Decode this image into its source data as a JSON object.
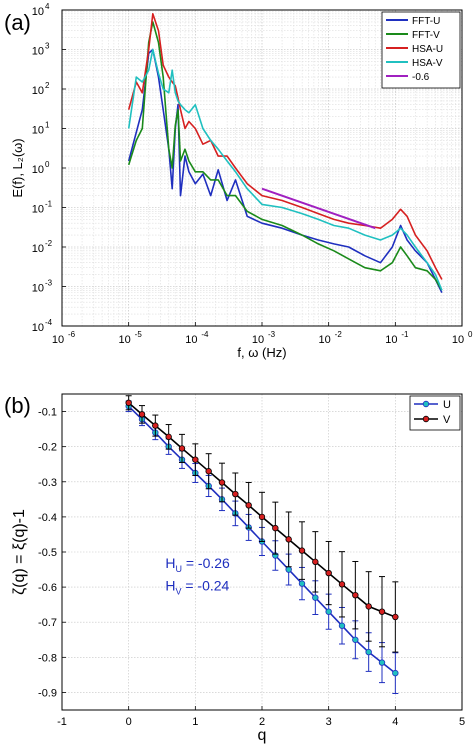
{
  "chart_data": [
    {
      "panel_label": "(a)",
      "type": "line",
      "title": "",
      "xlabel": "f, ω (Hz)",
      "ylabel": "E(f), L₂(ω)",
      "xscale": "log",
      "yscale": "log",
      "xlim": [
        1e-06,
        1
      ],
      "ylim": [
        0.0001,
        10000.0
      ],
      "x_ticks": [
        {
          "base": "10",
          "exp": "-6"
        },
        {
          "base": "10",
          "exp": "-5"
        },
        {
          "base": "10",
          "exp": "-4"
        },
        {
          "base": "10",
          "exp": "-3"
        },
        {
          "base": "10",
          "exp": "-2"
        },
        {
          "base": "10",
          "exp": "-1"
        },
        {
          "base": "10",
          "exp": "0"
        }
      ],
      "y_ticks": [
        {
          "base": "10",
          "exp": "-4"
        },
        {
          "base": "10",
          "exp": "-3"
        },
        {
          "base": "10",
          "exp": "-2"
        },
        {
          "base": "10",
          "exp": "-1"
        },
        {
          "base": "10",
          "exp": "0"
        },
        {
          "base": "10",
          "exp": "1"
        },
        {
          "base": "10",
          "exp": "2"
        },
        {
          "base": "10",
          "exp": "3"
        },
        {
          "base": "10",
          "exp": "4"
        }
      ],
      "grid": true,
      "legend_position": "top-right",
      "series": [
        {
          "name": "FFT-U",
          "color": "#1f2fbf",
          "x": [
            1e-05,
            1.3e-05,
            1.6e-05,
            2e-05,
            2.3e-05,
            2.8e-05,
            3.3e-05,
            4e-05,
            4.5e-05,
            5e-05,
            5.5e-05,
            6e-05,
            7e-05,
            8e-05,
            0.0001,
            0.00013,
            0.00017,
            0.00022,
            0.0003,
            0.0004,
            0.0006,
            0.001,
            0.002,
            0.004,
            0.007,
            0.012,
            0.02,
            0.035,
            0.06,
            0.09,
            0.12,
            0.15,
            0.2,
            0.3,
            0.4,
            0.5
          ],
          "y": [
            1.5,
            8,
            30,
            800,
            1000,
            200,
            30,
            3,
            0.3,
            10,
            40,
            0.2,
            2,
            0.8,
            0.4,
            0.7,
            0.2,
            0.9,
            0.15,
            0.5,
            0.06,
            0.04,
            0.03,
            0.02,
            0.015,
            0.012,
            0.01,
            0.006,
            0.004,
            0.01,
            0.035,
            0.015,
            0.008,
            0.004,
            0.0015,
            0.0007
          ]
        },
        {
          "name": "FFT-V",
          "color": "#1a8a1a",
          "x": [
            1e-05,
            1.3e-05,
            1.6e-05,
            2e-05,
            2.3e-05,
            2.8e-05,
            3.3e-05,
            4e-05,
            4.5e-05,
            5e-05,
            5.5e-05,
            6e-05,
            7e-05,
            8e-05,
            0.0001,
            0.00013,
            0.00017,
            0.00022,
            0.0003,
            0.0004,
            0.0006,
            0.001,
            0.002,
            0.004,
            0.007,
            0.012,
            0.02,
            0.035,
            0.06,
            0.09,
            0.12,
            0.15,
            0.2,
            0.3,
            0.4,
            0.5
          ],
          "y": [
            1.2,
            5,
            10,
            1500,
            5000,
            1500,
            200,
            3,
            1,
            12,
            30,
            1.5,
            3,
            1.5,
            0.8,
            0.8,
            0.5,
            0.5,
            0.2,
            0.2,
            0.08,
            0.05,
            0.035,
            0.02,
            0.012,
            0.008,
            0.005,
            0.003,
            0.0025,
            0.004,
            0.01,
            0.006,
            0.003,
            0.0025,
            0.0015,
            0.0008
          ]
        },
        {
          "name": "HSA-U",
          "color": "#d62020",
          "x": [
            1e-05,
            1.3e-05,
            1.6e-05,
            2e-05,
            2.3e-05,
            2.8e-05,
            3.3e-05,
            4e-05,
            4.5e-05,
            5e-05,
            5.5e-05,
            6e-05,
            7e-05,
            8e-05,
            0.0001,
            0.00013,
            0.00017,
            0.00022,
            0.0003,
            0.0004,
            0.0006,
            0.001,
            0.002,
            0.004,
            0.007,
            0.012,
            0.02,
            0.035,
            0.06,
            0.09,
            0.12,
            0.15,
            0.2,
            0.3,
            0.4,
            0.5
          ],
          "y": [
            30,
            150,
            80,
            1000,
            8000,
            3000,
            400,
            200,
            150,
            120,
            60,
            30,
            10,
            15,
            10,
            4,
            5,
            2,
            2,
            1,
            0.4,
            0.2,
            0.15,
            0.1,
            0.07,
            0.05,
            0.04,
            0.035,
            0.03,
            0.05,
            0.09,
            0.06,
            0.02,
            0.008,
            0.003,
            0.0015
          ]
        },
        {
          "name": "HSA-V",
          "color": "#20c0c0",
          "x": [
            1e-05,
            1.3e-05,
            1.6e-05,
            2e-05,
            2.3e-05,
            2.8e-05,
            3.3e-05,
            4e-05,
            4.5e-05,
            5e-05,
            5.5e-05,
            6e-05,
            7e-05,
            8e-05,
            0.0001,
            0.00013,
            0.00017,
            0.00022,
            0.0003,
            0.0004,
            0.0006,
            0.001,
            0.002,
            0.004,
            0.007,
            0.012,
            0.02,
            0.035,
            0.06,
            0.09,
            0.12,
            0.15,
            0.2,
            0.3,
            0.4,
            0.5
          ],
          "y": [
            10,
            200,
            150,
            300,
            1000,
            250,
            100,
            80,
            300,
            80,
            50,
            40,
            30,
            25,
            40,
            10,
            5,
            3,
            1.5,
            0.8,
            0.3,
            0.12,
            0.1,
            0.07,
            0.05,
            0.035,
            0.03,
            0.02,
            0.015,
            0.02,
            0.03,
            0.02,
            0.01,
            0.004,
            0.002,
            0.0008
          ]
        },
        {
          "name": "-0.6",
          "color": "#a020c0",
          "x": [
            0.001,
            0.05
          ],
          "y": [
            0.3,
            0.03
          ]
        }
      ]
    },
    {
      "panel_label": "(b)",
      "type": "line",
      "title": "",
      "xlabel": "q",
      "ylabel": "ζ(q) = ξ(q)-1",
      "xlim": [
        -1,
        5
      ],
      "ylim": [
        -0.95,
        -0.05
      ],
      "x_ticks": [
        -1,
        0,
        1,
        2,
        3,
        4,
        5
      ],
      "y_ticks": [
        -0.9,
        -0.8,
        -0.7,
        -0.6,
        -0.5,
        -0.4,
        -0.3,
        -0.2,
        -0.1
      ],
      "y_tick_labels": [
        "-0.9",
        "-0.8",
        "-0.7",
        "-0.6",
        "-0.5",
        "-0.4",
        "-0.3",
        "-0.2",
        "-0.1"
      ],
      "grid": true,
      "legend_position": "top-right",
      "annotations": [
        {
          "base": "H",
          "sub": "U",
          "rest": " = -0.26"
        },
        {
          "base": "H",
          "sub": "V",
          "rest": " = -0.24"
        }
      ],
      "annotation_color": "#1f2fbf",
      "series": [
        {
          "name": "U",
          "color": "#1f2fbf",
          "marker_color": "#20c0c0",
          "x": [
            0,
            0.2,
            0.4,
            0.6,
            0.8,
            1.0,
            1.2,
            1.4,
            1.6,
            1.8,
            2.0,
            2.2,
            2.4,
            2.6,
            2.8,
            3.0,
            3.2,
            3.4,
            3.6,
            3.8,
            4.0
          ],
          "y": [
            -0.085,
            -0.122,
            -0.16,
            -0.2,
            -0.237,
            -0.275,
            -0.312,
            -0.35,
            -0.39,
            -0.43,
            -0.47,
            -0.51,
            -0.55,
            -0.59,
            -0.63,
            -0.67,
            -0.71,
            -0.75,
            -0.785,
            -0.815,
            -0.845
          ],
          "err": [
            0.015,
            0.018,
            0.02,
            0.022,
            0.025,
            0.027,
            0.03,
            0.032,
            0.035,
            0.037,
            0.04,
            0.042,
            0.044,
            0.046,
            0.048,
            0.05,
            0.052,
            0.054,
            0.055,
            0.057,
            0.058
          ]
        },
        {
          "name": "V",
          "color": "#000000",
          "marker_color": "#d62020",
          "x": [
            0,
            0.2,
            0.4,
            0.6,
            0.8,
            1.0,
            1.2,
            1.4,
            1.6,
            1.8,
            2.0,
            2.2,
            2.4,
            2.6,
            2.8,
            3.0,
            3.2,
            3.4,
            3.6,
            3.8,
            4.0
          ],
          "y": [
            -0.075,
            -0.108,
            -0.14,
            -0.172,
            -0.205,
            -0.237,
            -0.27,
            -0.302,
            -0.335,
            -0.367,
            -0.4,
            -0.432,
            -0.464,
            -0.496,
            -0.528,
            -0.56,
            -0.592,
            -0.623,
            -0.655,
            -0.67,
            -0.685
          ],
          "err": [
            0.02,
            0.025,
            0.03,
            0.035,
            0.04,
            0.045,
            0.05,
            0.055,
            0.06,
            0.065,
            0.07,
            0.074,
            0.078,
            0.082,
            0.086,
            0.09,
            0.093,
            0.096,
            0.099,
            0.1,
            0.1
          ]
        }
      ]
    }
  ]
}
